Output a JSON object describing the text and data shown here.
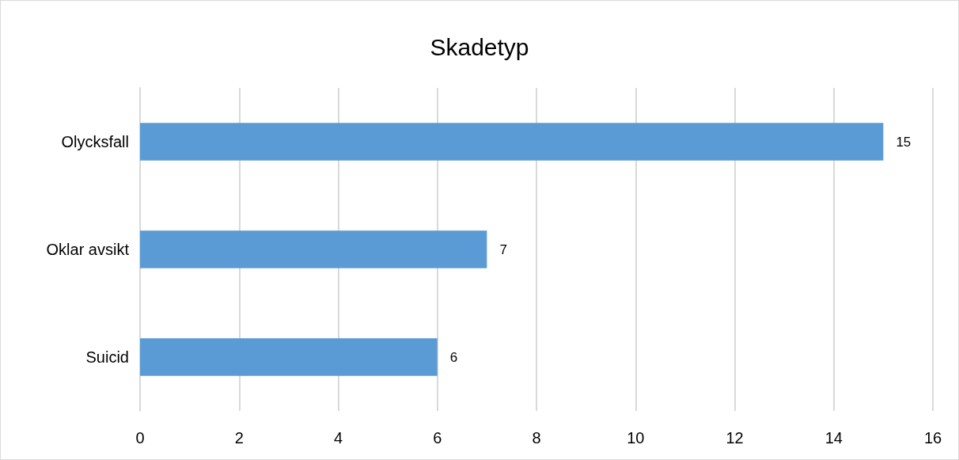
{
  "chart_data": {
    "type": "bar",
    "title": "Skadetyp",
    "orientation": "horizontal",
    "categories": [
      "Olycksfall",
      "Oklar avsikt",
      "Suicid"
    ],
    "values": [
      15,
      7,
      6
    ],
    "color": "#5b9bd5",
    "xlim": [
      0,
      16
    ],
    "xticks": [
      0,
      2,
      4,
      6,
      8,
      10,
      12,
      14,
      16
    ],
    "grid": "x",
    "data_labels": true
  }
}
